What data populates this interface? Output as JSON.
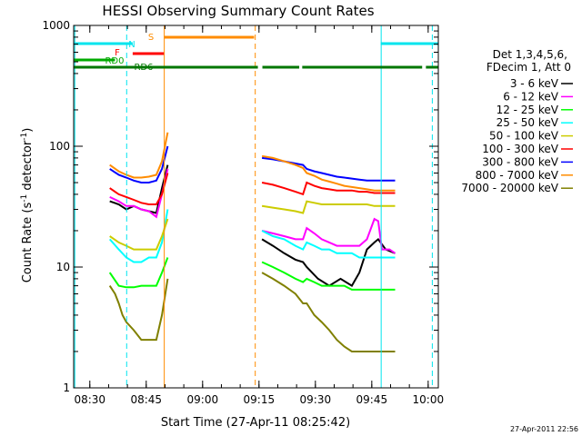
{
  "chart_data": {
    "type": "line",
    "title": "HESSI Observing Summary Count Rates",
    "xlabel": "Start Time (27-Apr-11 08:25:42)",
    "ylabel": "Count Rate (s",
    "ylabel_sup1": "-1",
    "ylabel_mid": " detector",
    "ylabel_sup2": "-1",
    "ylabel_end": ")",
    "y_scale": "log",
    "ylim": [
      1,
      1000
    ],
    "xlim_minutes": [
      0,
      97
    ],
    "x_ticks": [
      {
        "m": 4.3,
        "label": "08:30"
      },
      {
        "m": 19.3,
        "label": "08:45"
      },
      {
        "m": 34.3,
        "label": "09:00"
      },
      {
        "m": 49.3,
        "label": "09:15"
      },
      {
        "m": 64.3,
        "label": "09:30"
      },
      {
        "m": 79.3,
        "label": "09:45"
      },
      {
        "m": 94.3,
        "label": "10:00"
      }
    ],
    "y_ticks": [
      {
        "v": 1,
        "label": "1"
      },
      {
        "v": 10,
        "label": "10"
      },
      {
        "v": 100,
        "label": "100"
      },
      {
        "v": 1000,
        "label": "1000"
      }
    ],
    "legend_header": [
      "Det 1,3,4,5,6,",
      "FDecim 1, Att 0"
    ],
    "legend_placement": "right",
    "timestamp": "27-Apr-2011 22:56",
    "flags": [
      {
        "label": "N",
        "color": "#00e5ee",
        "segments": [
          [
            0,
            15.7
          ],
          [
            81.7,
            97
          ]
        ]
      },
      {
        "label": "F",
        "color": "#ff0000",
        "segments": [
          [
            15.7,
            24
          ]
        ]
      },
      {
        "label": "S",
        "color": "#ff8c00",
        "segments": [
          [
            24,
            48
          ]
        ]
      },
      {
        "label": "RD0",
        "color": "#00aa00",
        "segments": [
          [
            0,
            11
          ]
        ]
      },
      {
        "label": "RD6",
        "color": "#007700",
        "segments": [
          [
            0,
            49
          ],
          [
            50.2,
            60
          ],
          [
            60.8,
            92.7
          ],
          [
            93.7,
            97
          ]
        ]
      }
    ],
    "event_lines": [
      {
        "m": 14.1,
        "color": "#00e5ee",
        "style": "dashed"
      },
      {
        "m": 24.1,
        "color": "#ff8c00",
        "style": "solid"
      },
      {
        "m": 48.3,
        "color": "#ff8c00",
        "style": "dashed"
      },
      {
        "m": 81.8,
        "color": "#00e5ee",
        "style": "solid"
      },
      {
        "m": 95.4,
        "color": "#00e5ee",
        "style": "dashed"
      },
      {
        "m": 0.3,
        "color": "#00e5ee",
        "style": "solid"
      }
    ],
    "segments": [
      [
        9.6,
        25.2
      ],
      [
        50.1,
        85.5
      ]
    ],
    "series": [
      {
        "name": "3 - 6 keV",
        "color": "#000000",
        "points": [
          [
            9.6,
            35
          ],
          [
            12,
            33
          ],
          [
            14,
            30
          ],
          [
            16,
            32
          ],
          [
            18,
            30
          ],
          [
            20,
            29
          ],
          [
            22,
            28
          ],
          [
            23.5,
            45
          ],
          [
            25,
            70
          ],
          [
            50.1,
            17
          ],
          [
            53,
            15
          ],
          [
            56,
            13
          ],
          [
            59,
            11.5
          ],
          [
            61,
            11
          ],
          [
            62,
            10
          ],
          [
            65,
            8
          ],
          [
            68,
            7
          ],
          [
            71,
            8
          ],
          [
            74,
            7
          ],
          [
            76,
            9
          ],
          [
            78,
            14
          ],
          [
            80,
            16
          ],
          [
            81,
            17
          ],
          [
            83,
            14
          ],
          [
            85.5,
            13
          ]
        ]
      },
      {
        "name": "6 - 12 keV",
        "color": "#ff00ff",
        "points": [
          [
            9.6,
            38
          ],
          [
            12,
            35
          ],
          [
            14,
            32
          ],
          [
            16,
            32
          ],
          [
            18,
            30
          ],
          [
            20,
            29
          ],
          [
            22,
            26
          ],
          [
            23.5,
            40
          ],
          [
            25,
            65
          ],
          [
            50.1,
            20
          ],
          [
            53,
            19
          ],
          [
            56,
            18
          ],
          [
            59,
            17
          ],
          [
            61,
            17
          ],
          [
            62,
            21
          ],
          [
            64,
            19
          ],
          [
            66,
            17
          ],
          [
            68,
            16
          ],
          [
            70,
            15
          ],
          [
            72,
            15
          ],
          [
            74,
            15
          ],
          [
            76,
            15
          ],
          [
            78,
            17
          ],
          [
            80,
            25
          ],
          [
            81,
            24
          ],
          [
            82,
            14
          ],
          [
            84,
            14
          ],
          [
            85.5,
            13
          ]
        ]
      },
      {
        "name": "12 - 25 keV",
        "color": "#00ff00",
        "points": [
          [
            9.6,
            9
          ],
          [
            12,
            7
          ],
          [
            14,
            6.8
          ],
          [
            16,
            6.8
          ],
          [
            18,
            7
          ],
          [
            20,
            7
          ],
          [
            22,
            7
          ],
          [
            23.5,
            9
          ],
          [
            25,
            12
          ],
          [
            50.1,
            11
          ],
          [
            53,
            10
          ],
          [
            56,
            9
          ],
          [
            59,
            8
          ],
          [
            61,
            7.5
          ],
          [
            62,
            8
          ],
          [
            64,
            7.5
          ],
          [
            66,
            7
          ],
          [
            68,
            7
          ],
          [
            70,
            7
          ],
          [
            72,
            7
          ],
          [
            74,
            6.5
          ],
          [
            76,
            6.5
          ],
          [
            78,
            6.5
          ],
          [
            80,
            6.5
          ],
          [
            82,
            6.5
          ],
          [
            84,
            6.5
          ],
          [
            85.5,
            6.5
          ]
        ]
      },
      {
        "name": "25 - 50 keV",
        "color": "#00ffff",
        "points": [
          [
            9.6,
            17
          ],
          [
            12,
            14
          ],
          [
            14,
            12
          ],
          [
            16,
            11
          ],
          [
            18,
            11
          ],
          [
            20,
            12
          ],
          [
            22,
            12
          ],
          [
            23.5,
            16
          ],
          [
            25,
            30
          ],
          [
            50.1,
            20
          ],
          [
            53,
            18
          ],
          [
            56,
            17
          ],
          [
            59,
            15
          ],
          [
            61,
            14
          ],
          [
            62,
            16
          ],
          [
            64,
            15
          ],
          [
            66,
            14
          ],
          [
            68,
            14
          ],
          [
            70,
            13
          ],
          [
            72,
            13
          ],
          [
            74,
            13
          ],
          [
            76,
            12
          ],
          [
            78,
            12
          ],
          [
            80,
            12
          ],
          [
            82,
            12
          ],
          [
            84,
            12
          ],
          [
            85.5,
            12
          ]
        ]
      },
      {
        "name": "50 - 100 keV",
        "color": "#cccc00",
        "points": [
          [
            9.6,
            18
          ],
          [
            12,
            16
          ],
          [
            14,
            15
          ],
          [
            16,
            14
          ],
          [
            18,
            14
          ],
          [
            20,
            14
          ],
          [
            22,
            14
          ],
          [
            23.5,
            18
          ],
          [
            25,
            25
          ],
          [
            50.1,
            32
          ],
          [
            53,
            31
          ],
          [
            56,
            30
          ],
          [
            59,
            29
          ],
          [
            61,
            28
          ],
          [
            62,
            35
          ],
          [
            64,
            34
          ],
          [
            66,
            33
          ],
          [
            68,
            33
          ],
          [
            70,
            33
          ],
          [
            72,
            33
          ],
          [
            74,
            33
          ],
          [
            76,
            33
          ],
          [
            78,
            33
          ],
          [
            80,
            32
          ],
          [
            82,
            32
          ],
          [
            84,
            32
          ],
          [
            85.5,
            32
          ]
        ]
      },
      {
        "name": "100 - 300 keV",
        "color": "#ff0000",
        "points": [
          [
            9.6,
            45
          ],
          [
            12,
            40
          ],
          [
            14,
            38
          ],
          [
            16,
            36
          ],
          [
            18,
            34
          ],
          [
            20,
            33
          ],
          [
            22,
            33
          ],
          [
            23.5,
            40
          ],
          [
            25,
            60
          ],
          [
            50.1,
            50
          ],
          [
            53,
            48
          ],
          [
            56,
            45
          ],
          [
            59,
            42
          ],
          [
            61,
            40
          ],
          [
            62,
            50
          ],
          [
            64,
            47
          ],
          [
            66,
            45
          ],
          [
            68,
            44
          ],
          [
            70,
            43
          ],
          [
            72,
            43
          ],
          [
            74,
            43
          ],
          [
            76,
            42
          ],
          [
            78,
            42
          ],
          [
            80,
            41
          ],
          [
            82,
            41
          ],
          [
            84,
            41
          ],
          [
            85.5,
            41
          ]
        ]
      },
      {
        "name": "300 - 800 keV",
        "color": "#0000ff",
        "points": [
          [
            9.6,
            65
          ],
          [
            12,
            58
          ],
          [
            14,
            55
          ],
          [
            16,
            52
          ],
          [
            18,
            50
          ],
          [
            20,
            50
          ],
          [
            22,
            52
          ],
          [
            23.5,
            65
          ],
          [
            25,
            100
          ],
          [
            50.1,
            80
          ],
          [
            53,
            78
          ],
          [
            56,
            75
          ],
          [
            59,
            72
          ],
          [
            61,
            70
          ],
          [
            62,
            65
          ],
          [
            64,
            62
          ],
          [
            66,
            60
          ],
          [
            68,
            58
          ],
          [
            70,
            56
          ],
          [
            72,
            55
          ],
          [
            74,
            54
          ],
          [
            76,
            53
          ],
          [
            78,
            52
          ],
          [
            80,
            52
          ],
          [
            82,
            52
          ],
          [
            84,
            52
          ],
          [
            85.5,
            52
          ]
        ]
      },
      {
        "name": "800 - 7000 keV",
        "color": "#ff8c00",
        "points": [
          [
            9.6,
            70
          ],
          [
            12,
            62
          ],
          [
            14,
            58
          ],
          [
            16,
            55
          ],
          [
            18,
            55
          ],
          [
            20,
            56
          ],
          [
            22,
            58
          ],
          [
            23.5,
            75
          ],
          [
            25,
            130
          ],
          [
            50.1,
            83
          ],
          [
            53,
            80
          ],
          [
            56,
            75
          ],
          [
            59,
            70
          ],
          [
            61,
            66
          ],
          [
            62,
            60
          ],
          [
            64,
            57
          ],
          [
            66,
            53
          ],
          [
            68,
            51
          ],
          [
            70,
            49
          ],
          [
            72,
            47
          ],
          [
            74,
            46
          ],
          [
            76,
            45
          ],
          [
            78,
            44
          ],
          [
            80,
            43
          ],
          [
            82,
            43
          ],
          [
            84,
            43
          ],
          [
            85.5,
            43
          ]
        ]
      },
      {
        "name": "7000 - 20000 keV",
        "color": "#808000",
        "points": [
          [
            9.6,
            7
          ],
          [
            11,
            6
          ],
          [
            12,
            5
          ],
          [
            13,
            4
          ],
          [
            14,
            3.5
          ],
          [
            16,
            3
          ],
          [
            18,
            2.5
          ],
          [
            20,
            2.5
          ],
          [
            22,
            2.5
          ],
          [
            23.5,
            4
          ],
          [
            25,
            8
          ],
          [
            50.1,
            9
          ],
          [
            53,
            8
          ],
          [
            56,
            7
          ],
          [
            59,
            6
          ],
          [
            61,
            5
          ],
          [
            62,
            5
          ],
          [
            64,
            4
          ],
          [
            66,
            3.5
          ],
          [
            68,
            3
          ],
          [
            70,
            2.5
          ],
          [
            72,
            2.2
          ],
          [
            74,
            2
          ],
          [
            76,
            2
          ],
          [
            78,
            2
          ],
          [
            80,
            2
          ],
          [
            82,
            2
          ],
          [
            84,
            2
          ],
          [
            85.5,
            2
          ]
        ]
      }
    ]
  }
}
